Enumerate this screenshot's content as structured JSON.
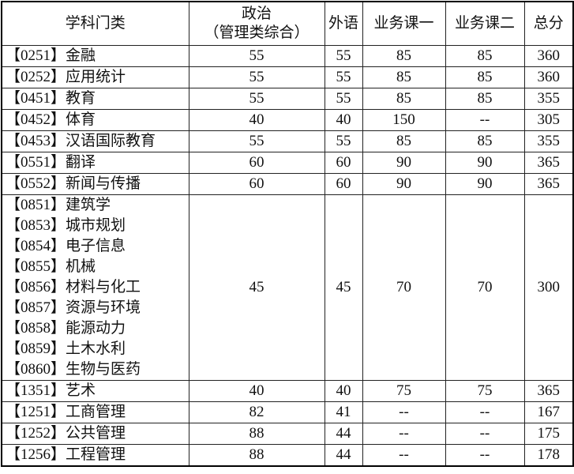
{
  "headers": [
    "学科门类",
    "政治",
    "（管理类综合）",
    "外语",
    "业务课一",
    "业务课二",
    "总分"
  ],
  "rows": [
    {
      "name": "【0251】金融",
      "politics": "55",
      "lang": "55",
      "c1": "85",
      "c2": "85",
      "total": "360"
    },
    {
      "name": "【0252】应用统计",
      "politics": "55",
      "lang": "55",
      "c1": "85",
      "c2": "85",
      "total": "360"
    },
    {
      "name": "【0451】教育",
      "politics": "55",
      "lang": "55",
      "c1": "85",
      "c2": "85",
      "total": "355"
    },
    {
      "name": "【0452】体育",
      "politics": "40",
      "lang": "40",
      "c1": "150",
      "c2": "--",
      "total": "305"
    },
    {
      "name": "【0453】汉语国际教育",
      "politics": "55",
      "lang": "55",
      "c1": "85",
      "c2": "85",
      "total": "355"
    },
    {
      "name": "【0551】翻译",
      "politics": "60",
      "lang": "60",
      "c1": "90",
      "c2": "90",
      "total": "365"
    },
    {
      "name": "【0552】新闻与传播",
      "politics": "60",
      "lang": "60",
      "c1": "90",
      "c2": "90",
      "total": "365"
    }
  ],
  "group": {
    "names": [
      "【0851】建筑学",
      "【0853】城市规划",
      "【0854】电子信息",
      "【0855】机械",
      "【0856】材料与化工",
      "【0857】资源与环境",
      "【0858】能源动力",
      "【0859】土木水利",
      "【0860】生物与医药"
    ],
    "politics": "45",
    "lang": "45",
    "c1": "70",
    "c2": "70",
    "total": "300"
  },
  "rows2": [
    {
      "name": "【1351】艺术",
      "politics": "40",
      "lang": "40",
      "c1": "75",
      "c2": "75",
      "total": "365"
    },
    {
      "name": "【1251】工商管理",
      "politics": "82",
      "lang": "41",
      "c1": "--",
      "c2": "--",
      "total": "167"
    },
    {
      "name": "【1252】公共管理",
      "politics": "88",
      "lang": "44",
      "c1": "--",
      "c2": "--",
      "total": "175"
    },
    {
      "name": "【1256】工程管理",
      "politics": "88",
      "lang": "44",
      "c1": "--",
      "c2": "--",
      "total": "178"
    }
  ]
}
